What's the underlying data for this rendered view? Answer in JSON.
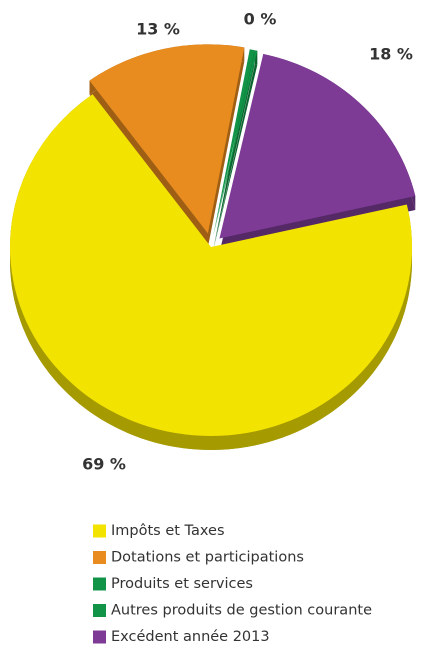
{
  "chart_data": {
    "type": "pie",
    "categories": [
      "Impôts et Taxes",
      "Dotations et participations",
      "Produits et services",
      "Autres produits de gestion courante",
      "Excédent année 2013"
    ],
    "values": [
      69,
      13,
      0.4,
      0.2,
      18
    ],
    "value_labels": [
      "69 %",
      "13 %",
      "0 %",
      null,
      "18 %"
    ],
    "colors": [
      "#f2e300",
      "#e98c1f",
      "#119447",
      "#119447",
      "#7d3b96"
    ],
    "legend": "bottom"
  }
}
